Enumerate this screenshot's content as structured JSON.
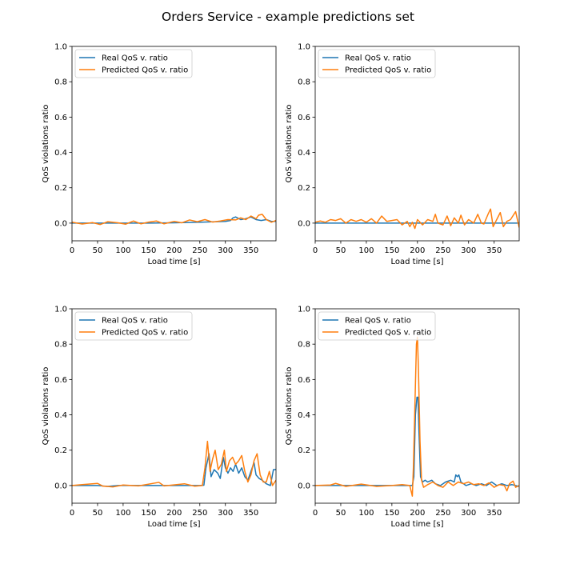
{
  "figure": {
    "suptitle": "Orders Service - example predictions set"
  },
  "colors": {
    "real": "#1f77b4",
    "predicted": "#ff7f0e"
  },
  "chart_data": [
    {
      "type": "line",
      "xlabel": "Load time [s]",
      "ylabel": "QoS violations ratio",
      "xlim": [
        0,
        399
      ],
      "ylim": [
        -0.1,
        1.0
      ],
      "xticks": [
        0,
        50,
        100,
        150,
        200,
        250,
        300,
        350
      ],
      "yticks": [
        0.0,
        0.2,
        0.4,
        0.6,
        0.8,
        1.0
      ],
      "legend": "top-left",
      "series": [
        {
          "name": "Real QoS v. ratio",
          "points": [
            [
              0,
              0
            ],
            [
              50,
              0
            ],
            [
              100,
              0
            ],
            [
              150,
              0
            ],
            [
              200,
              0.002
            ],
            [
              250,
              0.005
            ],
            [
              300,
              0.01
            ],
            [
              310,
              0.015
            ],
            [
              315,
              0.03
            ],
            [
              320,
              0.035
            ],
            [
              330,
              0.02
            ],
            [
              340,
              0.025
            ],
            [
              350,
              0.035
            ],
            [
              360,
              0.02
            ],
            [
              370,
              0.015
            ],
            [
              380,
              0.02
            ],
            [
              390,
              0.01
            ],
            [
              399,
              0.01
            ]
          ]
        },
        {
          "name": "Predicted QoS v. ratio",
          "points": [
            [
              0,
              0.005
            ],
            [
              20,
              -0.005
            ],
            [
              40,
              0.003
            ],
            [
              55,
              -0.008
            ],
            [
              70,
              0.008
            ],
            [
              90,
              0.002
            ],
            [
              105,
              -0.006
            ],
            [
              120,
              0.012
            ],
            [
              135,
              -0.004
            ],
            [
              150,
              0.006
            ],
            [
              165,
              0.012
            ],
            [
              180,
              -0.004
            ],
            [
              200,
              0.01
            ],
            [
              215,
              0.002
            ],
            [
              230,
              0.018
            ],
            [
              245,
              0.008
            ],
            [
              260,
              0.02
            ],
            [
              275,
              0.006
            ],
            [
              290,
              0.012
            ],
            [
              305,
              0.02
            ],
            [
              320,
              0.018
            ],
            [
              330,
              0.03
            ],
            [
              340,
              0.02
            ],
            [
              350,
              0.04
            ],
            [
              360,
              0.025
            ],
            [
              365,
              0.045
            ],
            [
              372,
              0.05
            ],
            [
              380,
              0.02
            ],
            [
              390,
              0.005
            ],
            [
              399,
              0.015
            ]
          ]
        }
      ]
    },
    {
      "type": "line",
      "xlabel": "Load time [s]",
      "ylabel": "QoS violations ratio",
      "xlim": [
        0,
        399
      ],
      "ylim": [
        -0.1,
        1.0
      ],
      "xticks": [
        0,
        50,
        100,
        150,
        200,
        250,
        300,
        350
      ],
      "yticks": [
        0.0,
        0.2,
        0.4,
        0.6,
        0.8,
        1.0
      ],
      "legend": "top-left",
      "series": [
        {
          "name": "Real QoS v. ratio",
          "points": [
            [
              0,
              0
            ],
            [
              100,
              0
            ],
            [
              200,
              0
            ],
            [
              300,
              0
            ],
            [
              399,
              0
            ]
          ]
        },
        {
          "name": "Predicted QoS v. ratio",
          "points": [
            [
              0,
              0.005
            ],
            [
              10,
              0.012
            ],
            [
              20,
              0.005
            ],
            [
              30,
              0.02
            ],
            [
              40,
              0.015
            ],
            [
              50,
              0.025
            ],
            [
              60,
              0.0
            ],
            [
              70,
              0.02
            ],
            [
              80,
              0.01
            ],
            [
              90,
              0.02
            ],
            [
              100,
              0.005
            ],
            [
              110,
              0.025
            ],
            [
              120,
              0.0
            ],
            [
              130,
              0.04
            ],
            [
              140,
              0.01
            ],
            [
              150,
              0.015
            ],
            [
              160,
              0.02
            ],
            [
              170,
              -0.01
            ],
            [
              180,
              0.01
            ],
            [
              185,
              -0.02
            ],
            [
              190,
              0.005
            ],
            [
              195,
              -0.03
            ],
            [
              200,
              0.02
            ],
            [
              210,
              -0.01
            ],
            [
              220,
              0.02
            ],
            [
              230,
              0.01
            ],
            [
              235,
              0.05
            ],
            [
              240,
              0.0
            ],
            [
              250,
              -0.01
            ],
            [
              258,
              0.04
            ],
            [
              265,
              -0.015
            ],
            [
              272,
              0.03
            ],
            [
              280,
              0.0
            ],
            [
              285,
              0.045
            ],
            [
              292,
              -0.01
            ],
            [
              300,
              0.02
            ],
            [
              310,
              0.0
            ],
            [
              318,
              0.05
            ],
            [
              325,
              0.0
            ],
            [
              330,
              -0.005
            ],
            [
              338,
              0.05
            ],
            [
              343,
              0.08
            ],
            [
              348,
              -0.02
            ],
            [
              355,
              0.02
            ],
            [
              362,
              0.06
            ],
            [
              368,
              -0.02
            ],
            [
              375,
              0.01
            ],
            [
              382,
              0.02
            ],
            [
              392,
              0.065
            ],
            [
              399,
              -0.025
            ]
          ]
        }
      ]
    },
    {
      "type": "line",
      "xlabel": "Load time [s]",
      "ylabel": "QoS violations ratio",
      "xlim": [
        0,
        399
      ],
      "ylim": [
        -0.1,
        1.0
      ],
      "xticks": [
        0,
        50,
        100,
        150,
        200,
        250,
        300,
        350
      ],
      "yticks": [
        0.0,
        0.2,
        0.4,
        0.6,
        0.8,
        1.0
      ],
      "legend": "top-left",
      "series": [
        {
          "name": "Real QoS v. ratio",
          "points": [
            [
              0,
              0
            ],
            [
              50,
              0.0
            ],
            [
              70,
              -0.005
            ],
            [
              90,
              0.0
            ],
            [
              150,
              0.0
            ],
            [
              200,
              0.0
            ],
            [
              250,
              0.0
            ],
            [
              258,
              0.002
            ],
            [
              262,
              0.1
            ],
            [
              265,
              0.14
            ],
            [
              268,
              0.18
            ],
            [
              272,
              0.05
            ],
            [
              278,
              0.09
            ],
            [
              285,
              0.07
            ],
            [
              290,
              0.04
            ],
            [
              296,
              0.16
            ],
            [
              300,
              0.1
            ],
            [
              305,
              0.07
            ],
            [
              310,
              0.1
            ],
            [
              315,
              0.08
            ],
            [
              320,
              0.12
            ],
            [
              326,
              0.07
            ],
            [
              332,
              0.1
            ],
            [
              338,
              0.05
            ],
            [
              344,
              0.03
            ],
            [
              350,
              0.08
            ],
            [
              356,
              0.13
            ],
            [
              360,
              0.06
            ],
            [
              366,
              0.04
            ],
            [
              372,
              0.03
            ],
            [
              380,
              0.01
            ],
            [
              388,
              0.0
            ],
            [
              394,
              0.09
            ],
            [
              399,
              0.09
            ]
          ]
        },
        {
          "name": "Predicted QoS v. ratio",
          "points": [
            [
              0,
              0.0
            ],
            [
              20,
              0.005
            ],
            [
              50,
              0.012
            ],
            [
              60,
              -0.003
            ],
            [
              80,
              -0.008
            ],
            [
              100,
              0.003
            ],
            [
              130,
              -0.002
            ],
            [
              170,
              0.018
            ],
            [
              180,
              -0.002
            ],
            [
              220,
              0.01
            ],
            [
              240,
              -0.004
            ],
            [
              255,
              0.0
            ],
            [
              260,
              0.1
            ],
            [
              265,
              0.25
            ],
            [
              270,
              0.08
            ],
            [
              275,
              0.15
            ],
            [
              280,
              0.2
            ],
            [
              286,
              0.09
            ],
            [
              292,
              0.12
            ],
            [
              298,
              0.2
            ],
            [
              302,
              0.08
            ],
            [
              308,
              0.14
            ],
            [
              314,
              0.16
            ],
            [
              320,
              0.12
            ],
            [
              326,
              0.14
            ],
            [
              332,
              0.17
            ],
            [
              338,
              0.08
            ],
            [
              344,
              0.02
            ],
            [
              350,
              0.06
            ],
            [
              356,
              0.14
            ],
            [
              362,
              0.18
            ],
            [
              368,
              0.06
            ],
            [
              374,
              0.02
            ],
            [
              380,
              0.02
            ],
            [
              386,
              0.08
            ],
            [
              392,
              0.0
            ],
            [
              399,
              0.03
            ]
          ]
        }
      ]
    },
    {
      "type": "line",
      "xlabel": "Load time [s]",
      "ylabel": "QoS violations ratio",
      "xlim": [
        0,
        399
      ],
      "ylim": [
        -0.1,
        1.0
      ],
      "xticks": [
        0,
        50,
        100,
        150,
        200,
        250,
        300,
        350
      ],
      "yticks": [
        0.0,
        0.2,
        0.4,
        0.6,
        0.8,
        1.0
      ],
      "legend": "top-left",
      "series": [
        {
          "name": "Real QoS v. ratio",
          "points": [
            [
              0,
              0.0
            ],
            [
              50,
              0.0
            ],
            [
              100,
              0.0
            ],
            [
              150,
              0.0
            ],
            [
              190,
              0.0
            ],
            [
              193,
              0.05
            ],
            [
              196,
              0.4
            ],
            [
              199,
              0.5
            ],
            [
              201,
              0.5
            ],
            [
              203,
              0.3
            ],
            [
              206,
              0.05
            ],
            [
              210,
              0.02
            ],
            [
              215,
              0.03
            ],
            [
              220,
              0.02
            ],
            [
              228,
              0.03
            ],
            [
              235,
              0.01
            ],
            [
              245,
              0.0
            ],
            [
              255,
              0.02
            ],
            [
              265,
              0.03
            ],
            [
              272,
              0.02
            ],
            [
              275,
              0.06
            ],
            [
              278,
              0.05
            ],
            [
              281,
              0.06
            ],
            [
              285,
              0.02
            ],
            [
              295,
              0.0
            ],
            [
              305,
              0.01
            ],
            [
              315,
              0.0
            ],
            [
              325,
              0.01
            ],
            [
              335,
              0.0
            ],
            [
              345,
              0.02
            ],
            [
              355,
              0.0
            ],
            [
              365,
              0.01
            ],
            [
              375,
              0.0
            ],
            [
              385,
              0.005
            ],
            [
              399,
              -0.005
            ]
          ]
        },
        {
          "name": "Predicted QoS v. ratio",
          "points": [
            [
              0,
              0.0
            ],
            [
              30,
              0.003
            ],
            [
              40,
              0.012
            ],
            [
              60,
              -0.005
            ],
            [
              90,
              0.008
            ],
            [
              120,
              -0.005
            ],
            [
              150,
              0.0
            ],
            [
              170,
              0.005
            ],
            [
              185,
              0.0
            ],
            [
              190,
              -0.06
            ],
            [
              192,
              0.1
            ],
            [
              195,
              0.45
            ],
            [
              198,
              0.8
            ],
            [
              200,
              0.84
            ],
            [
              202,
              0.65
            ],
            [
              205,
              0.25
            ],
            [
              208,
              0.03
            ],
            [
              212,
              -0.01
            ],
            [
              220,
              0.005
            ],
            [
              230,
              0.02
            ],
            [
              240,
              0.0
            ],
            [
              250,
              -0.01
            ],
            [
              260,
              0.02
            ],
            [
              270,
              0.0
            ],
            [
              280,
              0.02
            ],
            [
              290,
              0.01
            ],
            [
              300,
              0.02
            ],
            [
              310,
              0.005
            ],
            [
              320,
              0.01
            ],
            [
              330,
              0.0
            ],
            [
              340,
              0.015
            ],
            [
              350,
              -0.01
            ],
            [
              360,
              0.005
            ],
            [
              370,
              0.0
            ],
            [
              375,
              -0.03
            ],
            [
              380,
              0.01
            ],
            [
              387,
              0.025
            ],
            [
              392,
              -0.01
            ],
            [
              399,
              0.0
            ]
          ]
        }
      ]
    }
  ]
}
